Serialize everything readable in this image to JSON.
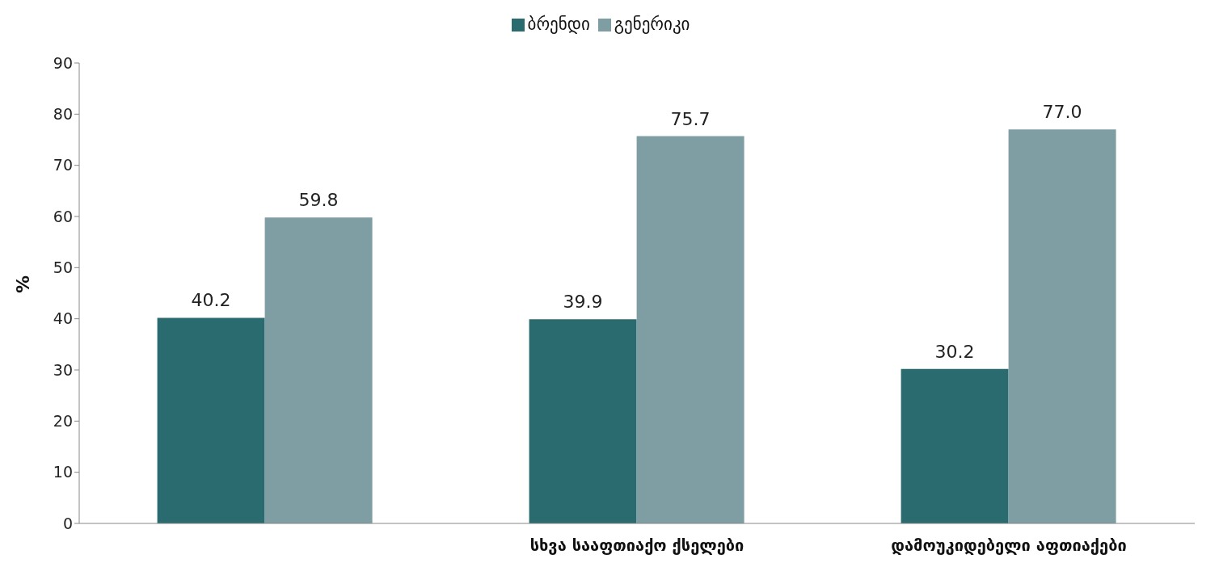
{
  "chart_data": {
    "type": "bar",
    "ylabel": "%",
    "categories": [
      null,
      "სხვა სააფთიაქო ქსელები",
      "დამოუკიდებელი აფთიაქები"
    ],
    "series": [
      {
        "name": "ბრენდი",
        "color": "#2a6b6f",
        "values": [
          40.2,
          39.9,
          30.2
        ],
        "value_labels": [
          "40.2",
          "39.9",
          "30.2"
        ]
      },
      {
        "name": "გენერიკი",
        "color": "#7e9ea3",
        "values": [
          59.8,
          75.7,
          77.0
        ],
        "value_labels": [
          "59.8",
          "75.7",
          "77.0"
        ]
      }
    ],
    "ylim": [
      0,
      90
    ],
    "yticks": [
      0,
      10,
      20,
      30,
      40,
      50,
      60,
      70,
      80,
      90
    ],
    "grid": false,
    "legend": "top"
  }
}
